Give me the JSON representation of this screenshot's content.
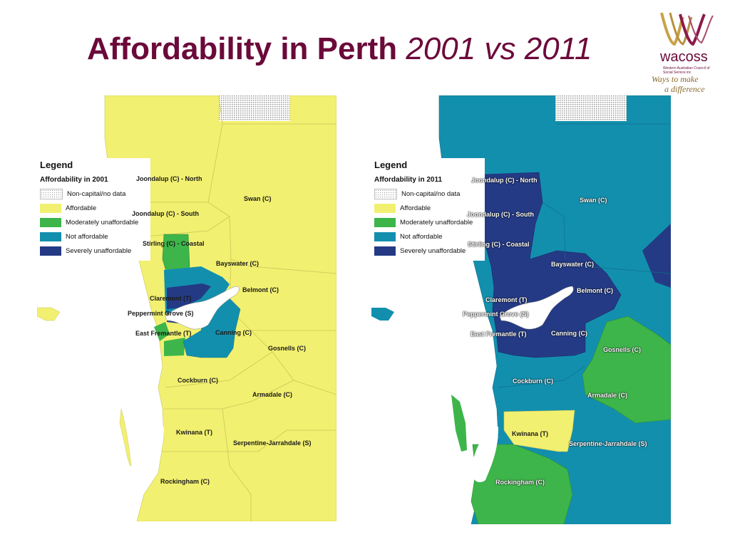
{
  "title": {
    "bold": "Affordability in Perth",
    "italic": "2001 vs 2011"
  },
  "logo": {
    "brand": "wacoss",
    "org": "Western Australian Council of Social Service inc",
    "tagline_1": "Ways to make",
    "tagline_2": "a difference"
  },
  "colors": {
    "affordable": "#f2f070",
    "moderately_unaffordable": "#3db54a",
    "not_affordable": "#138fae",
    "severely_unaffordable": "#243a84",
    "title": "#6b0a3a"
  },
  "legend_entries": [
    {
      "label": "Non-capital/no data",
      "key": "no_data"
    },
    {
      "label": "Affordable",
      "key": "affordable"
    },
    {
      "label": "Moderately unaffordable",
      "key": "moderately_unaffordable"
    },
    {
      "label": "Not affordable",
      "key": "not_affordable"
    },
    {
      "label": "Severely unaffordable",
      "key": "severely_unaffordable"
    }
  ],
  "map_2001": {
    "legend_title": "Legend",
    "legend_subtitle": "Affordability in 2001",
    "legend_items": [
      "Non-capital/no data",
      "Affordable",
      "Moderately unaffordable",
      "Not affordable",
      "Severely unaffordable"
    ],
    "labels": {
      "joondalup_north": "Joondalup (C) - North",
      "swan": "Swan (C)",
      "joondalup_south": "Joondalup (C) - South",
      "stirling": "Stirling (C) - Coastal",
      "bayswater": "Bayswater (C)",
      "belmont": "Belmont (C)",
      "claremont": "Claremont (T)",
      "peppermint": "Peppermint Grove (S)",
      "east_fremantle": "East Fremantle (T)",
      "canning": "Canning (C)",
      "gosnells": "Gosnells (C)",
      "cockburn": "Cockburn (C)",
      "armadale": "Armadale (C)",
      "kwinana": "Kwinana (T)",
      "serpentine": "Serpentine-Jarrahdale (S)",
      "rockingham": "Rockingham (C)"
    }
  },
  "map_2011": {
    "legend_title": "Legend",
    "legend_subtitle": "Affordability in 2011",
    "legend_items": [
      "Non-capital/no data",
      "Affordable",
      "Moderately unaffordable",
      "Not affordable",
      "Severely unaffordable"
    ],
    "labels": {
      "joondalup_north": "Joondalup (C) - North",
      "swan": "Swan (C)",
      "joondalup_south": "Joondalup (C) - South",
      "stirling": "Stirling (C) - Coastal",
      "bayswater": "Bayswater (C)",
      "belmont": "Belmont (C)",
      "claremont": "Claremont (T)",
      "peppermint": "Peppermint Grove (S)",
      "east_fremantle": "East Fremantle (T)",
      "canning": "Canning (C)",
      "gosnells": "Gosnells (C)",
      "cockburn": "Cockburn (C)",
      "armadale": "Armadale (C)",
      "kwinana": "Kwinana (T)",
      "serpentine": "Serpentine-Jarrahdale (S)",
      "rockingham": "Rockingham (C)"
    }
  }
}
